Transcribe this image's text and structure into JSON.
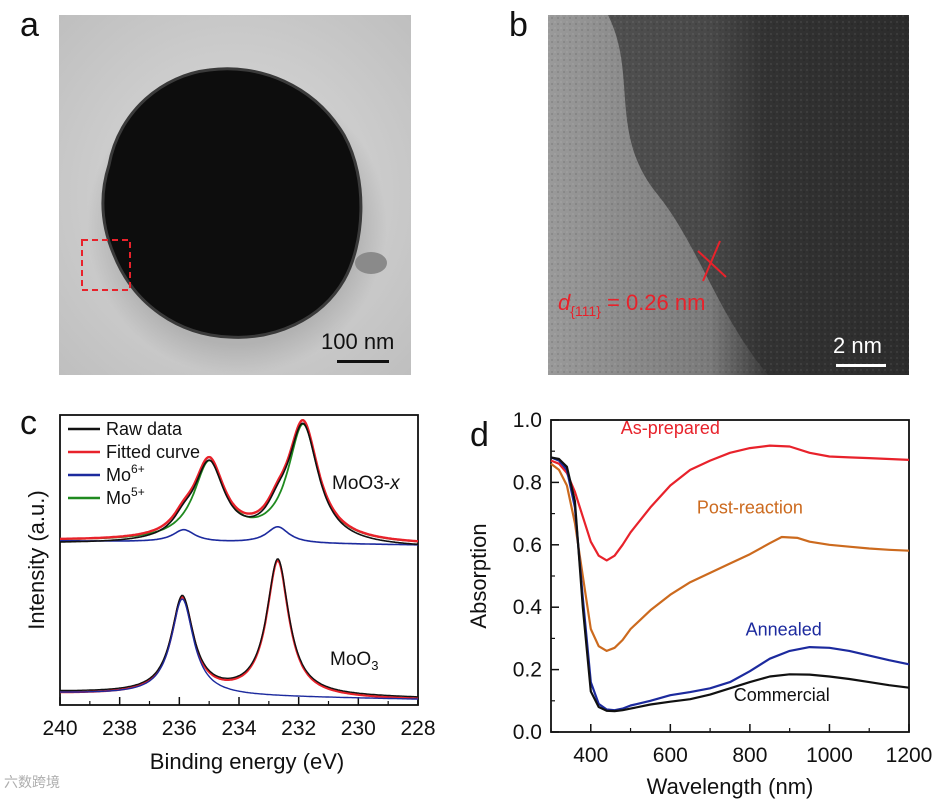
{
  "panels": {
    "a": {
      "letter": "a",
      "scale_label": "100 nm"
    },
    "b": {
      "letter": "b",
      "scale_label": "2 nm",
      "annotation_d": "d",
      "annotation_sub": "{111}",
      "annotation_value": " = 0.26 nm"
    },
    "c": {
      "letter": "c"
    },
    "d": {
      "letter": "d"
    }
  },
  "colors": {
    "red": "#e8222b",
    "blue": "#1c2a9e",
    "green": "#1f8a1f",
    "orange": "#cc6a1e",
    "black": "#111111"
  },
  "chart_data": [
    {
      "type": "line",
      "panel": "c",
      "title": "",
      "xlabel": "Binding energy (eV)",
      "ylabel": "Intensity (a.u.)",
      "xlim": [
        240,
        228
      ],
      "x_reversed": true,
      "xticks": [
        240,
        238,
        236,
        234,
        232,
        230,
        228
      ],
      "yticks": [],
      "legend": [
        {
          "name": "Raw data",
          "color": "#111111"
        },
        {
          "name": "Fitted curve",
          "color": "#e8222b"
        },
        {
          "name": "Mo",
          "sup": "6+",
          "color": "#1c2a9e"
        },
        {
          "name": "Mo",
          "sup": "5+",
          "color": "#1f8a1f"
        }
      ],
      "legend_position": "top-left",
      "annotations": [
        {
          "text": "MoO",
          "sub": "3-x",
          "position": "upper-right"
        },
        {
          "text": "MoO",
          "sub": "3",
          "position": "lower-right"
        }
      ],
      "series": [
        {
          "name": "MoO3-x baseline",
          "color": "#111111",
          "background": [
            0.02,
            0.0
          ],
          "peaks": []
        },
        {
          "name": "MoO3-x Mo6+",
          "color": "#1c2a9e",
          "offset": 0.0,
          "peaks": [
            {
              "center": 235.85,
              "height": 0.06,
              "width": 0.45
            },
            {
              "center": 232.7,
              "height": 0.08,
              "width": 0.45
            }
          ]
        },
        {
          "name": "MoO3-x Mo5+",
          "color": "#1f8a1f",
          "offset": 0.0,
          "peaks": [
            {
              "center": 235.0,
              "height": 0.38,
              "width": 0.62
            },
            {
              "center": 231.85,
              "height": 0.57,
              "width": 0.62
            }
          ]
        },
        {
          "name": "MoO3 Mo6+ doublet",
          "color": "#1c2a9e",
          "offset": -0.9,
          "peaks": [
            {
              "center": 235.9,
              "height": 0.47,
              "width": 0.45
            },
            {
              "center": 232.7,
              "height": 0.66,
              "width": 0.45
            }
          ]
        }
      ]
    },
    {
      "type": "line",
      "panel": "d",
      "title": "",
      "xlabel": "Wavelength (nm)",
      "ylabel": "Absorption",
      "xlim": [
        300,
        1200
      ],
      "ylim": [
        0.0,
        1.0
      ],
      "xticks": [
        400,
        600,
        800,
        1000,
        1200
      ],
      "yticks": [
        0.0,
        0.2,
        0.4,
        0.6,
        0.8,
        1.0
      ],
      "series": [
        {
          "name": "As-prepared",
          "color": "#e8222b",
          "x": [
            300,
            320,
            340,
            360,
            380,
            400,
            420,
            440,
            460,
            480,
            500,
            550,
            600,
            650,
            700,
            750,
            800,
            850,
            900,
            950,
            1000,
            1050,
            1100,
            1150,
            1200
          ],
          "values": [
            0.87,
            0.86,
            0.83,
            0.77,
            0.69,
            0.61,
            0.565,
            0.55,
            0.565,
            0.6,
            0.64,
            0.72,
            0.79,
            0.84,
            0.87,
            0.895,
            0.91,
            0.918,
            0.915,
            0.895,
            0.883,
            0.88,
            0.878,
            0.875,
            0.872
          ]
        },
        {
          "name": "Post-reaction",
          "color": "#cc6a1e",
          "x": [
            300,
            320,
            340,
            360,
            380,
            400,
            420,
            440,
            460,
            480,
            500,
            550,
            600,
            650,
            700,
            750,
            800,
            850,
            880,
            920,
            950,
            1000,
            1050,
            1100,
            1150,
            1200
          ],
          "values": [
            0.86,
            0.84,
            0.79,
            0.67,
            0.5,
            0.33,
            0.275,
            0.26,
            0.27,
            0.295,
            0.33,
            0.39,
            0.44,
            0.48,
            0.51,
            0.54,
            0.57,
            0.605,
            0.625,
            0.622,
            0.61,
            0.6,
            0.594,
            0.588,
            0.584,
            0.581
          ]
        },
        {
          "name": "Annealed",
          "color": "#1c2a9e",
          "x": [
            300,
            320,
            340,
            360,
            380,
            400,
            420,
            440,
            460,
            480,
            500,
            550,
            600,
            650,
            700,
            750,
            800,
            850,
            900,
            950,
            1000,
            1050,
            1100,
            1150,
            1200
          ],
          "values": [
            0.88,
            0.87,
            0.84,
            0.72,
            0.43,
            0.16,
            0.09,
            0.072,
            0.07,
            0.075,
            0.085,
            0.1,
            0.118,
            0.128,
            0.14,
            0.16,
            0.195,
            0.235,
            0.26,
            0.272,
            0.27,
            0.26,
            0.245,
            0.23,
            0.217
          ]
        },
        {
          "name": "Commercial",
          "color": "#111111",
          "x": [
            300,
            320,
            340,
            360,
            380,
            400,
            420,
            440,
            460,
            480,
            500,
            550,
            600,
            650,
            700,
            750,
            800,
            850,
            900,
            950,
            1000,
            1050,
            1100,
            1150,
            1200
          ],
          "values": [
            0.88,
            0.875,
            0.85,
            0.74,
            0.4,
            0.13,
            0.08,
            0.068,
            0.067,
            0.07,
            0.075,
            0.088,
            0.097,
            0.105,
            0.12,
            0.14,
            0.16,
            0.178,
            0.185,
            0.184,
            0.178,
            0.17,
            0.16,
            0.15,
            0.142
          ]
        }
      ],
      "labels": [
        {
          "text": "As-prepared",
          "series": "As-prepared"
        },
        {
          "text": "Post-reaction",
          "series": "Post-reaction"
        },
        {
          "text": "Annealed",
          "series": "Annealed"
        },
        {
          "text": "Commercial",
          "series": "Commercial"
        }
      ]
    }
  ],
  "watermark": "六数跨境"
}
